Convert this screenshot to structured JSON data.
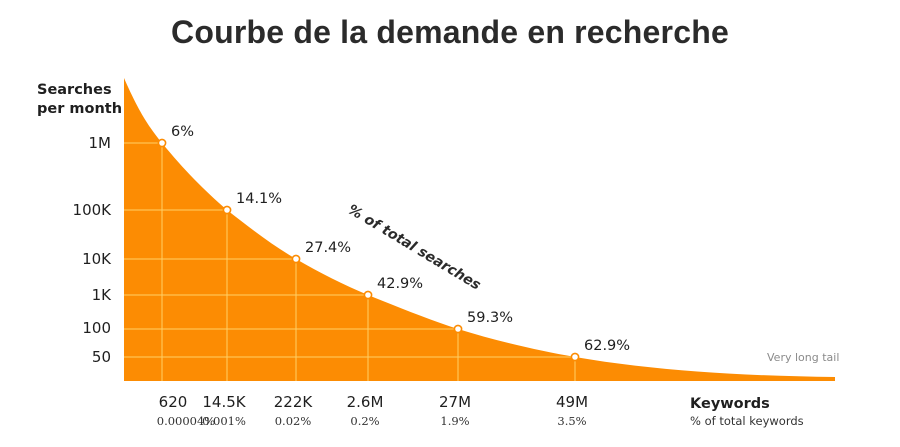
{
  "chart_data": {
    "type": "area",
    "title": "Courbe de la demande en recherche",
    "ylabel_line1": "Searches",
    "ylabel_line2": "per month",
    "xlabel": "Keywords",
    "xlabel_sub": "% of total keywords",
    "curve_label": "% of total searches",
    "tail_label": "Very long tail",
    "y_scale": "log",
    "y_ticks": [
      "1M",
      "100K",
      "10K",
      "1K",
      "100",
      "50"
    ],
    "points": [
      {
        "keywords": "620",
        "keywords_pct": "0.00004%",
        "searches": "1M",
        "searches_pct": "6%"
      },
      {
        "keywords": "14.5K",
        "keywords_pct": "0.001%",
        "searches": "100K",
        "searches_pct": "14.1%"
      },
      {
        "keywords": "222K",
        "keywords_pct": "0.02%",
        "searches": "10K",
        "searches_pct": "27.4%"
      },
      {
        "keywords": "2.6M",
        "keywords_pct": "0.2%",
        "searches": "1K",
        "searches_pct": "42.9%"
      },
      {
        "keywords": "27M",
        "keywords_pct": "1.9%",
        "searches": "100",
        "searches_pct": "59.3%"
      },
      {
        "keywords": "49M",
        "keywords_pct": "3.5%",
        "searches": "50",
        "searches_pct": "62.9%"
      }
    ],
    "colors": {
      "area": "#fc8c03",
      "grid": "#ffd066",
      "title": "#2b2b2b"
    }
  }
}
